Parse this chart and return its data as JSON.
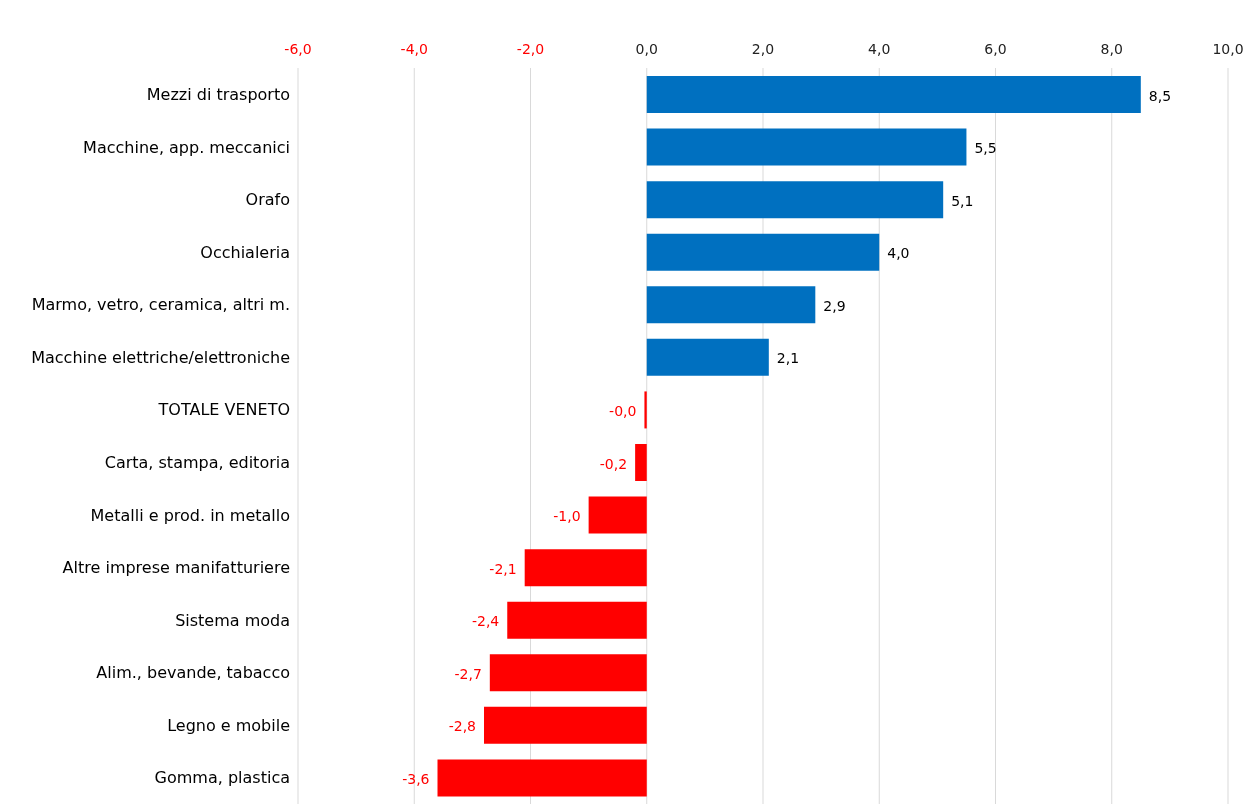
{
  "chart_data": {
    "type": "bar",
    "orientation": "horizontal",
    "categories": [
      "Mezzi di trasporto",
      "Macchine, app. meccanici",
      "Orafo",
      "Occhialeria",
      "Marmo, vetro, ceramica, altri m.",
      "Macchine elettriche/elettroniche",
      "TOTALE VENETO",
      "Carta, stampa, editoria",
      "Metalli e prod. in metallo",
      "Altre imprese manifatturiere",
      "Sistema moda",
      "Alim., bevande, tabacco",
      "Legno e mobile",
      "Gomma, plastica"
    ],
    "values": [
      8.5,
      5.5,
      5.1,
      4.0,
      2.9,
      2.1,
      -0.04,
      -0.2,
      -1.0,
      -2.1,
      -2.4,
      -2.7,
      -2.8,
      -3.6
    ],
    "value_labels": [
      "8,5",
      "5,5",
      "5,1",
      "4,0",
      "2,9",
      "2,1",
      "-0,0",
      "-0,2",
      "-1,0",
      "-2,1",
      "-2,4",
      "-2,7",
      "-2,8",
      "-3,6"
    ],
    "colors": [
      "#0070c0",
      "#0070c0",
      "#0070c0",
      "#0070c0",
      "#0070c0",
      "#0070c0",
      "#ff0000",
      "#ff0000",
      "#ff0000",
      "#ff0000",
      "#ff0000",
      "#ff0000",
      "#ff0000",
      "#ff0000"
    ],
    "xlim": [
      -6,
      10
    ],
    "xticks": [
      {
        "value": -6,
        "label": "-6,0"
      },
      {
        "value": -4,
        "label": "-4,0"
      },
      {
        "value": -2,
        "label": "-2,0"
      },
      {
        "value": 0,
        "label": "0,0"
      },
      {
        "value": 2,
        "label": "2,0"
      },
      {
        "value": 4,
        "label": "4,0"
      },
      {
        "value": 6,
        "label": "6,0"
      },
      {
        "value": 8,
        "label": "8,0"
      },
      {
        "value": 10,
        "label": "10,0"
      }
    ],
    "grid": "x",
    "legend": false
  }
}
